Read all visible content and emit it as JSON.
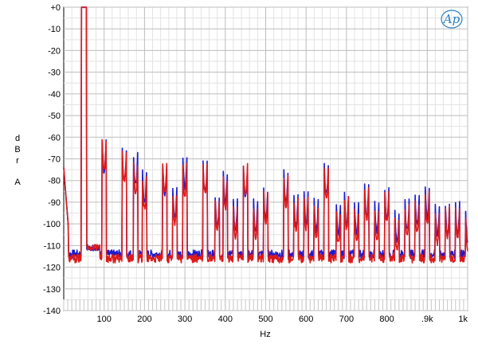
{
  "chart_data": {
    "type": "line",
    "ylabel_chars": [
      "d",
      "B",
      "r",
      "A"
    ],
    "xlabel": "Hz",
    "logo": "Ap",
    "xlim": [
      0,
      1000
    ],
    "ylim": [
      -140,
      0
    ],
    "y_ticks": [
      0,
      -10,
      -20,
      -30,
      -40,
      -50,
      -60,
      -70,
      -80,
      -90,
      -100,
      -110,
      -120,
      -130,
      -140
    ],
    "y_tick_labels": [
      "+0",
      "-10",
      "-20",
      "-30",
      "-40",
      "-50",
      "-60",
      "-70",
      "-80",
      "-90",
      "-100",
      "-110",
      "-120",
      "-130",
      "-140"
    ],
    "x_ticks": [
      100,
      200,
      300,
      400,
      500,
      600,
      700,
      800,
      900,
      1000
    ],
    "x_tick_labels": [
      "100",
      "200",
      "300",
      "400",
      "500",
      "600",
      "700",
      "800",
      ".9k",
      "1k"
    ],
    "grid": true,
    "series": [
      {
        "color": "#1a1ad0",
        "floor": -114,
        "peaks": [
          [
            50,
            0
          ],
          [
            100,
            -76
          ],
          [
            150,
            -80
          ],
          [
            178,
            -82
          ],
          [
            200,
            -90
          ],
          [
            250,
            -86
          ],
          [
            275,
            -97
          ],
          [
            300,
            -83
          ],
          [
            350,
            -85
          ],
          [
            380,
            -101
          ],
          [
            400,
            -90
          ],
          [
            425,
            -103
          ],
          [
            450,
            -87
          ],
          [
            475,
            -103
          ],
          [
            500,
            -98
          ],
          [
            550,
            -90
          ],
          [
            575,
            -101
          ],
          [
            600,
            -100
          ],
          [
            625,
            -103
          ],
          [
            650,
            -86
          ],
          [
            680,
            -105
          ],
          [
            700,
            -100
          ],
          [
            725,
            -104
          ],
          [
            750,
            -96
          ],
          [
            775,
            -104
          ],
          [
            800,
            -98
          ],
          [
            825,
            -108
          ],
          [
            850,
            -103
          ],
          [
            875,
            -100
          ],
          [
            900,
            -97
          ],
          [
            925,
            -105
          ],
          [
            950,
            -105
          ],
          [
            975,
            -104
          ],
          [
            1000,
            -108
          ]
        ]
      },
      {
        "color": "#dd1a1a",
        "floor": -116,
        "peaks": [
          [
            50,
            0
          ],
          [
            100,
            -75
          ],
          [
            150,
            -80
          ],
          [
            178,
            -86
          ],
          [
            200,
            -93
          ],
          [
            250,
            -85
          ],
          [
            275,
            -100
          ],
          [
            300,
            -87
          ],
          [
            350,
            -86
          ],
          [
            380,
            -103
          ],
          [
            400,
            -93
          ],
          [
            425,
            -106
          ],
          [
            450,
            -86
          ],
          [
            475,
            -106
          ],
          [
            500,
            -100
          ],
          [
            550,
            -92
          ],
          [
            575,
            -103
          ],
          [
            600,
            -102
          ],
          [
            625,
            -106
          ],
          [
            650,
            -88
          ],
          [
            680,
            -109
          ],
          [
            700,
            -102
          ],
          [
            725,
            -108
          ],
          [
            750,
            -98
          ],
          [
            775,
            -108
          ],
          [
            800,
            -99
          ],
          [
            825,
            -112
          ],
          [
            850,
            -106
          ],
          [
            875,
            -104
          ],
          [
            900,
            -100
          ],
          [
            925,
            -109
          ],
          [
            950,
            -106
          ],
          [
            975,
            -107
          ],
          [
            1000,
            -112
          ]
        ]
      }
    ]
  }
}
